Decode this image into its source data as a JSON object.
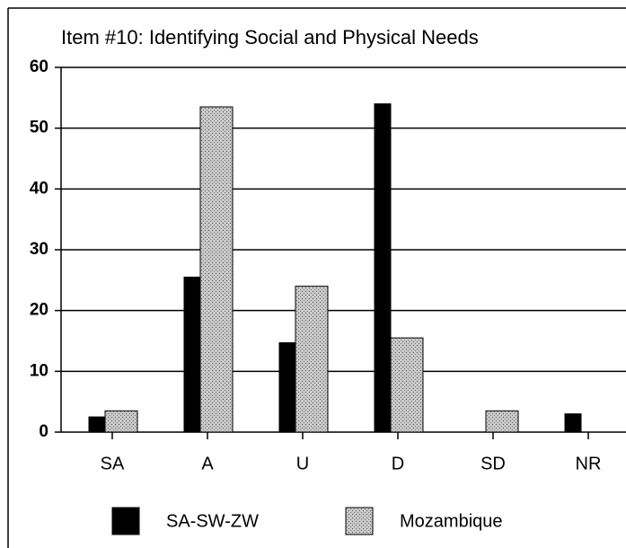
{
  "chart_data": {
    "type": "bar",
    "title": "Item #10:  Identifying Social and Physical Needs",
    "categories": [
      "SA",
      "A",
      "U",
      "D",
      "SD",
      "NR"
    ],
    "series": [
      {
        "name": "SA-SW-ZW",
        "color": "#000000",
        "values": [
          2.5,
          25.5,
          14.7,
          54,
          0,
          3
        ]
      },
      {
        "name": "Mozambique",
        "color": "#c8c8c8",
        "values": [
          3.5,
          53.5,
          24,
          15.5,
          3.5,
          0
        ]
      }
    ],
    "ylim": [
      0,
      60
    ],
    "yticks": [
      0,
      10,
      20,
      30,
      40,
      50,
      60
    ],
    "grid": true,
    "legend": "bottom"
  }
}
